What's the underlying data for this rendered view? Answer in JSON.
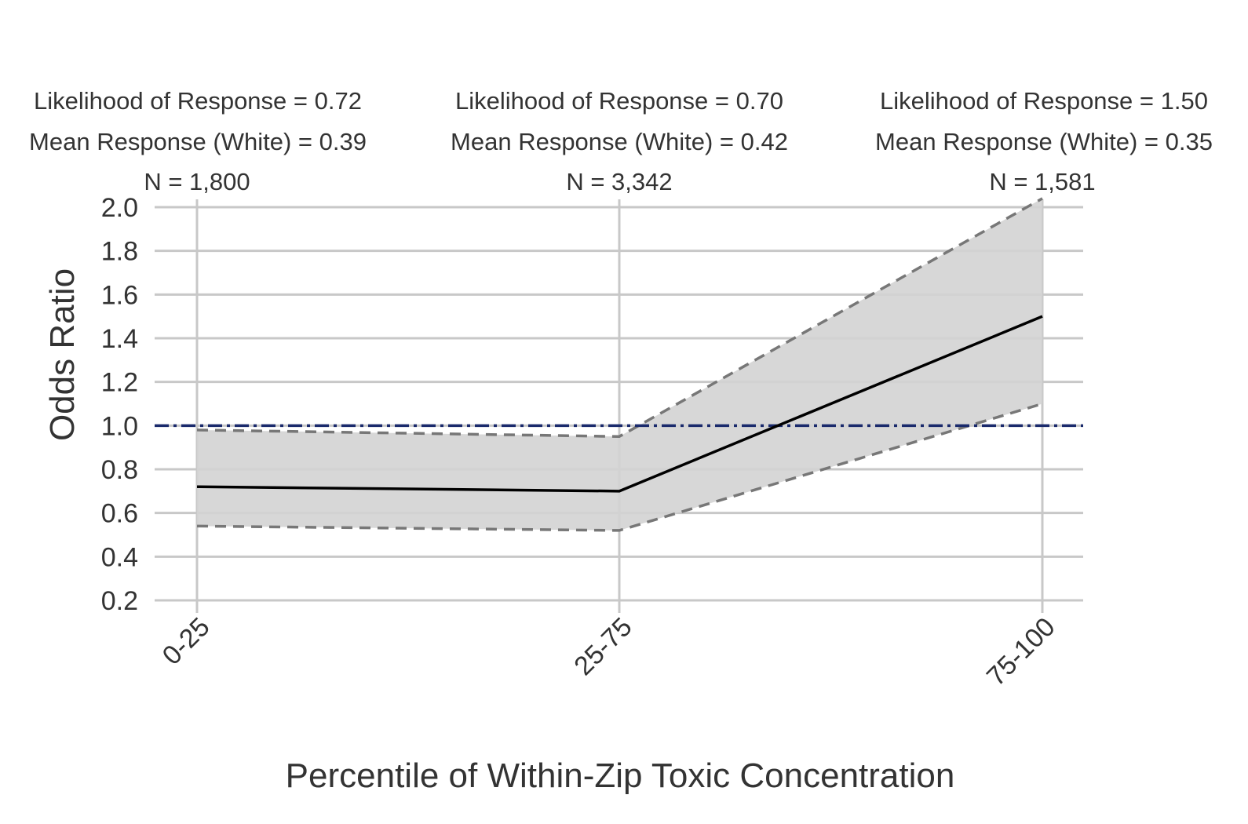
{
  "chart_data": {
    "type": "line",
    "xlabel": "Percentile of Within-Zip Toxic Concentration",
    "ylabel": "Odds Ratio",
    "categories": [
      "0-25",
      "25-75",
      "75-100"
    ],
    "ylim": [
      0.2,
      2.0
    ],
    "yticks": [
      0.2,
      0.4,
      0.6,
      0.8,
      1.0,
      1.2,
      1.4,
      1.6,
      1.8,
      2.0
    ],
    "ytick_labels": [
      "0.2",
      "0.4",
      "0.6",
      "0.8",
      "1.0",
      "1.2",
      "1.4",
      "1.6",
      "1.8",
      "2.0"
    ],
    "grid": true,
    "series": [
      {
        "values": [
          0.72,
          0.7,
          1.5
        ],
        "style": "solid",
        "color": "#000000"
      }
    ],
    "confidence_band": {
      "lower": [
        0.54,
        0.52,
        1.1
      ],
      "upper": [
        0.98,
        0.95,
        2.04
      ],
      "fill_color": "#d3d3d3",
      "edge_color": "#777777",
      "edge_style": "dashed"
    },
    "reference_line": {
      "y": 1.0,
      "color": "#1a2a6c",
      "style": "dash-dot"
    },
    "annotations": [
      {
        "likelihood": "Likelihood of Response = 0.72",
        "mean": "Mean Response (White) = 0.39",
        "n": "N = 1,800"
      },
      {
        "likelihood": "Likelihood of Response = 0.70",
        "mean": "Mean Response (White) = 0.42",
        "n": "N = 3,342"
      },
      {
        "likelihood": "Likelihood of Response = 1.50",
        "mean": "Mean Response (White) = 0.35",
        "n": "N = 1,581"
      }
    ],
    "colors": {
      "grid": "#c8c8c8",
      "text": "#333333"
    }
  }
}
